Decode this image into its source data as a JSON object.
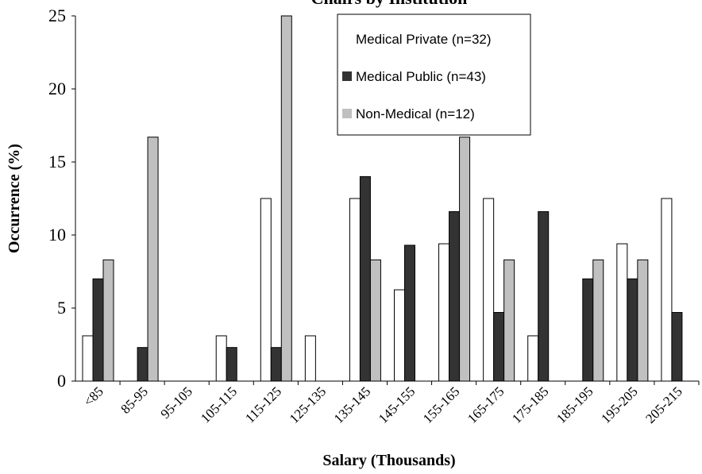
{
  "chart_data": {
    "type": "bar",
    "title": "Chairs by Institution",
    "xlabel": "Salary (Thousands)",
    "ylabel": "Occurrence (%)",
    "categories": [
      "<85",
      "85-95",
      "95-105",
      "105-115",
      "115-125",
      "125-135",
      "135-145",
      "145-155",
      "155-165",
      "165-175",
      "175-185",
      "185-195",
      "195-205",
      "205-215"
    ],
    "series": [
      {
        "name": "Medical Private (n=32)",
        "color": "#ffffff",
        "values": [
          3.1,
          0,
          0,
          3.1,
          12.5,
          3.1,
          12.5,
          6.25,
          9.4,
          12.5,
          3.1,
          0,
          9.4,
          12.5
        ]
      },
      {
        "name": "Medical Public (n=43)",
        "color": "#333333",
        "values": [
          7.0,
          2.3,
          0,
          2.3,
          2.3,
          0,
          14.0,
          9.3,
          11.6,
          4.7,
          11.6,
          7.0,
          7.0,
          4.7
        ]
      },
      {
        "name": "Non-Medical (n=12)",
        "color": "#c0c0c0",
        "values": [
          8.3,
          16.7,
          0,
          0,
          25,
          0,
          8.3,
          0,
          16.7,
          8.3,
          0,
          8.3,
          8.3,
          0
        ]
      }
    ],
    "ylim": [
      0,
      25
    ],
    "yticks": [
      0,
      5,
      10,
      15,
      20,
      25
    ],
    "legend": "upper center"
  }
}
